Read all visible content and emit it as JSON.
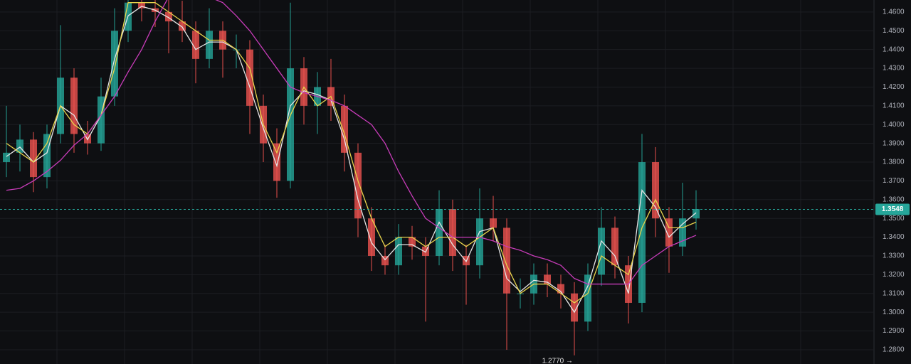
{
  "chart_data": {
    "type": "candlestick",
    "ylim": [
      1.2724,
      1.4664
    ],
    "yticks": [
      {
        "value": 1.46,
        "label": "1.4600"
      },
      {
        "value": 1.45,
        "label": "1.4500"
      },
      {
        "value": 1.44,
        "label": "1.4400"
      },
      {
        "value": 1.43,
        "label": "1.4300"
      },
      {
        "value": 1.42,
        "label": "1.4200"
      },
      {
        "value": 1.41,
        "label": "1.4100"
      },
      {
        "value": 1.4,
        "label": "1.4000"
      },
      {
        "value": 1.39,
        "label": "1.3900"
      },
      {
        "value": 1.38,
        "label": "1.3800"
      },
      {
        "value": 1.37,
        "label": "1.3700"
      },
      {
        "value": 1.36,
        "label": "1.3600"
      },
      {
        "value": 1.35,
        "label": "1.3500"
      },
      {
        "value": 1.34,
        "label": "1.3400"
      },
      {
        "value": 1.33,
        "label": "1.3300"
      },
      {
        "value": 1.32,
        "label": "1.3200"
      },
      {
        "value": 1.31,
        "label": "1.3100"
      },
      {
        "value": 1.3,
        "label": "1.3000"
      },
      {
        "value": 1.29,
        "label": "1.2900"
      },
      {
        "value": 1.28,
        "label": "1.2800"
      }
    ],
    "grid": true,
    "up_color": "#26a69a",
    "down_color": "#ef5350",
    "candles": [
      {
        "o": 1.38,
        "h": 1.41,
        "l": 1.372,
        "c": 1.385
      },
      {
        "o": 1.385,
        "h": 1.4,
        "l": 1.375,
        "c": 1.392
      },
      {
        "o": 1.392,
        "h": 1.396,
        "l": 1.364,
        "c": 1.372
      },
      {
        "o": 1.372,
        "h": 1.4,
        "l": 1.366,
        "c": 1.395
      },
      {
        "o": 1.395,
        "h": 1.453,
        "l": 1.39,
        "c": 1.425
      },
      {
        "o": 1.425,
        "h": 1.43,
        "l": 1.385,
        "c": 1.395
      },
      {
        "o": 1.395,
        "h": 1.402,
        "l": 1.384,
        "c": 1.39
      },
      {
        "o": 1.39,
        "h": 1.425,
        "l": 1.386,
        "c": 1.415
      },
      {
        "o": 1.415,
        "h": 1.462,
        "l": 1.41,
        "c": 1.45
      },
      {
        "o": 1.45,
        "h": 1.47,
        "l": 1.444,
        "c": 1.465
      },
      {
        "o": 1.465,
        "h": 1.47,
        "l": 1.455,
        "c": 1.462
      },
      {
        "o": 1.462,
        "h": 1.47,
        "l": 1.452,
        "c": 1.46
      },
      {
        "o": 1.46,
        "h": 1.468,
        "l": 1.438,
        "c": 1.455
      },
      {
        "o": 1.455,
        "h": 1.466,
        "l": 1.444,
        "c": 1.45
      },
      {
        "o": 1.45,
        "h": 1.455,
        "l": 1.422,
        "c": 1.435
      },
      {
        "o": 1.435,
        "h": 1.462,
        "l": 1.43,
        "c": 1.45
      },
      {
        "o": 1.45,
        "h": 1.455,
        "l": 1.425,
        "c": 1.44
      },
      {
        "o": 1.44,
        "h": 1.448,
        "l": 1.43,
        "c": 1.44
      },
      {
        "o": 1.44,
        "h": 1.445,
        "l": 1.395,
        "c": 1.41
      },
      {
        "o": 1.41,
        "h": 1.416,
        "l": 1.38,
        "c": 1.39
      },
      {
        "o": 1.39,
        "h": 1.398,
        "l": 1.361,
        "c": 1.37
      },
      {
        "o": 1.37,
        "h": 1.465,
        "l": 1.366,
        "c": 1.43
      },
      {
        "o": 1.43,
        "h": 1.436,
        "l": 1.4,
        "c": 1.41
      },
      {
        "o": 1.41,
        "h": 1.428,
        "l": 1.395,
        "c": 1.42
      },
      {
        "o": 1.42,
        "h": 1.435,
        "l": 1.402,
        "c": 1.41
      },
      {
        "o": 1.41,
        "h": 1.416,
        "l": 1.375,
        "c": 1.385
      },
      {
        "o": 1.385,
        "h": 1.39,
        "l": 1.34,
        "c": 1.35
      },
      {
        "o": 1.35,
        "h": 1.356,
        "l": 1.322,
        "c": 1.33
      },
      {
        "o": 1.33,
        "h": 1.336,
        "l": 1.32,
        "c": 1.325
      },
      {
        "o": 1.325,
        "h": 1.347,
        "l": 1.32,
        "c": 1.34
      },
      {
        "o": 1.34,
        "h": 1.346,
        "l": 1.328,
        "c": 1.335
      },
      {
        "o": 1.335,
        "h": 1.34,
        "l": 1.295,
        "c": 1.33
      },
      {
        "o": 1.33,
        "h": 1.365,
        "l": 1.325,
        "c": 1.355
      },
      {
        "o": 1.355,
        "h": 1.36,
        "l": 1.322,
        "c": 1.33
      },
      {
        "o": 1.33,
        "h": 1.336,
        "l": 1.304,
        "c": 1.325
      },
      {
        "o": 1.325,
        "h": 1.366,
        "l": 1.318,
        "c": 1.35
      },
      {
        "o": 1.35,
        "h": 1.362,
        "l": 1.338,
        "c": 1.345
      },
      {
        "o": 1.345,
        "h": 1.35,
        "l": 1.28,
        "c": 1.31
      },
      {
        "o": 1.31,
        "h": 1.318,
        "l": 1.302,
        "c": 1.31
      },
      {
        "o": 1.31,
        "h": 1.326,
        "l": 1.304,
        "c": 1.32
      },
      {
        "o": 1.32,
        "h": 1.326,
        "l": 1.308,
        "c": 1.315
      },
      {
        "o": 1.315,
        "h": 1.32,
        "l": 1.302,
        "c": 1.31
      },
      {
        "o": 1.31,
        "h": 1.316,
        "l": 1.277,
        "c": 1.295
      },
      {
        "o": 1.295,
        "h": 1.326,
        "l": 1.29,
        "c": 1.32
      },
      {
        "o": 1.32,
        "h": 1.356,
        "l": 1.314,
        "c": 1.345
      },
      {
        "o": 1.345,
        "h": 1.351,
        "l": 1.318,
        "c": 1.325
      },
      {
        "o": 1.325,
        "h": 1.33,
        "l": 1.294,
        "c": 1.305
      },
      {
        "o": 1.305,
        "h": 1.395,
        "l": 1.3,
        "c": 1.38
      },
      {
        "o": 1.38,
        "h": 1.388,
        "l": 1.34,
        "c": 1.35
      },
      {
        "o": 1.35,
        "h": 1.356,
        "l": 1.321,
        "c": 1.335
      },
      {
        "o": 1.335,
        "h": 1.369,
        "l": 1.33,
        "c": 1.35
      },
      {
        "o": 1.35,
        "h": 1.365,
        "l": 1.344,
        "c": 1.355
      }
    ],
    "series": [
      {
        "color": "#e6e6e6",
        "values": [
          1.383,
          1.388,
          1.38,
          1.385,
          1.41,
          1.405,
          1.392,
          1.405,
          1.435,
          1.458,
          1.463,
          1.461,
          1.457,
          1.452,
          1.44,
          1.444,
          1.444,
          1.44,
          1.42,
          1.398,
          1.378,
          1.41,
          1.418,
          1.416,
          1.413,
          1.392,
          1.36,
          1.337,
          1.328,
          1.336,
          1.336,
          1.332,
          1.348,
          1.336,
          1.327,
          1.343,
          1.345,
          1.318,
          1.311,
          1.317,
          1.316,
          1.311,
          1.3,
          1.314,
          1.338,
          1.33,
          1.31,
          1.365,
          1.356,
          1.34,
          1.347,
          1.353
        ]
      },
      {
        "color": "#e8d44d",
        "values": [
          1.39,
          1.385,
          1.38,
          1.39,
          1.41,
          1.4,
          1.395,
          1.405,
          1.43,
          1.465,
          1.465,
          1.465,
          1.46,
          1.455,
          1.45,
          1.445,
          1.445,
          1.44,
          1.43,
          1.4,
          1.385,
          1.405,
          1.42,
          1.41,
          1.415,
          1.395,
          1.37,
          1.35,
          1.335,
          1.34,
          1.34,
          1.335,
          1.34,
          1.34,
          1.335,
          1.34,
          1.345,
          1.325,
          1.31,
          1.315,
          1.315,
          1.31,
          1.305,
          1.31,
          1.33,
          1.325,
          1.32,
          1.345,
          1.36,
          1.345,
          1.345,
          1.348
        ]
      },
      {
        "color": "#c83cb9",
        "values": [
          1.365,
          1.366,
          1.37,
          1.375,
          1.381,
          1.389,
          1.395,
          1.405,
          1.415,
          1.428,
          1.44,
          1.455,
          1.468,
          1.47,
          1.47,
          1.468,
          1.465,
          1.458,
          1.45,
          1.44,
          1.43,
          1.42,
          1.417,
          1.415,
          1.413,
          1.41,
          1.405,
          1.4,
          1.39,
          1.375,
          1.362,
          1.35,
          1.345,
          1.34,
          1.34,
          1.34,
          1.338,
          1.335,
          1.333,
          1.33,
          1.328,
          1.325,
          1.318,
          1.315,
          1.315,
          1.315,
          1.315,
          1.325,
          1.33,
          1.335,
          1.338,
          1.341
        ]
      }
    ],
    "price_line": {
      "value": 1.3548,
      "label": "1.3548"
    },
    "low_annotation": {
      "value": 1.277,
      "label": "1.2770 →",
      "index": 42
    }
  }
}
